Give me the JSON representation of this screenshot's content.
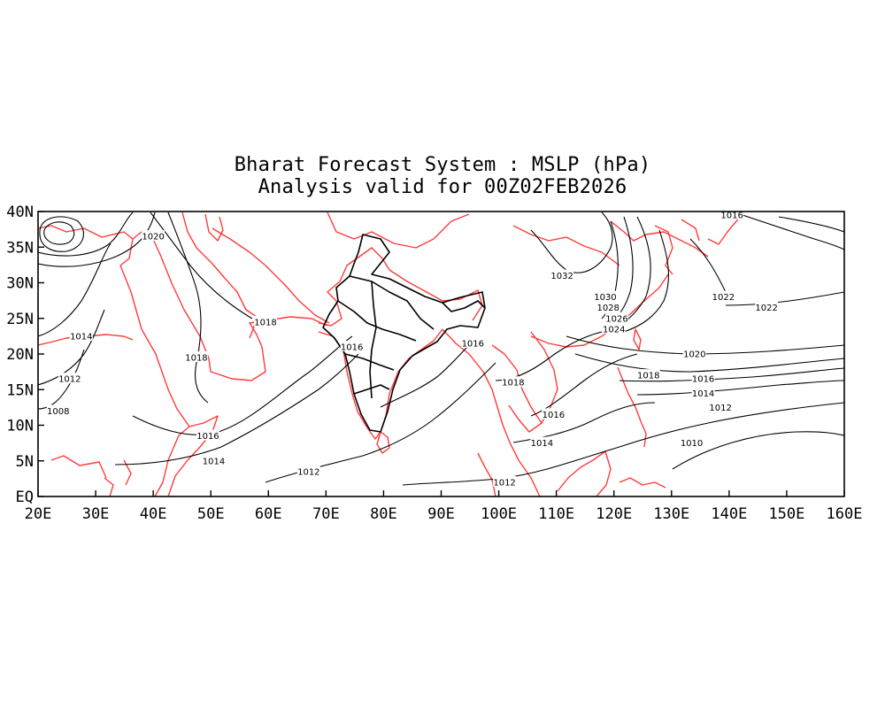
{
  "title": {
    "line1": "Bharat Forecast System : MSLP (hPa)",
    "line2": "Analysis valid for 00Z02FEB2026"
  },
  "axes": {
    "x_labels": [
      "20E",
      "30E",
      "40E",
      "50E",
      "60E",
      "70E",
      "80E",
      "90E",
      "100E",
      "110E",
      "120E",
      "130E",
      "140E",
      "150E",
      "160E"
    ],
    "y_labels": [
      "EQ",
      "5N",
      "10N",
      "15N",
      "20N",
      "25N",
      "30N",
      "35N",
      "40N"
    ],
    "lon_range": [
      20,
      160
    ],
    "lat_range": [
      0,
      40
    ]
  },
  "colors": {
    "coastline": "#ff3b3b",
    "contours": "#000000",
    "india_boundaries": "#000000"
  },
  "isobar_labels": [
    {
      "text": "1020",
      "lon": 40.0,
      "lat": 36.5
    },
    {
      "text": "1014",
      "lon": 27.5,
      "lat": 22.5
    },
    {
      "text": "1012",
      "lon": 25.5,
      "lat": 16.5
    },
    {
      "text": "1008",
      "lon": 23.5,
      "lat": 12.0
    },
    {
      "text": "1018",
      "lon": 47.5,
      "lat": 19.5
    },
    {
      "text": "1018",
      "lon": 59.5,
      "lat": 24.5
    },
    {
      "text": "1016",
      "lon": 49.5,
      "lat": 8.5
    },
    {
      "text": "1014",
      "lon": 50.5,
      "lat": 5.0
    },
    {
      "text": "1012",
      "lon": 67.0,
      "lat": 3.5
    },
    {
      "text": "1016",
      "lon": 74.5,
      "lat": 21.0
    },
    {
      "text": "1016",
      "lon": 95.5,
      "lat": 21.5
    },
    {
      "text": "1018",
      "lon": 102.5,
      "lat": 16.0
    },
    {
      "text": "1016",
      "lon": 109.5,
      "lat": 11.5
    },
    {
      "text": "1014",
      "lon": 107.5,
      "lat": 7.5
    },
    {
      "text": "1012",
      "lon": 101.0,
      "lat": 2.0
    },
    {
      "text": "1032",
      "lon": 111.0,
      "lat": 31.0
    },
    {
      "text": "1030",
      "lon": 118.5,
      "lat": 28.0
    },
    {
      "text": "1028",
      "lon": 119.0,
      "lat": 26.5
    },
    {
      "text": "1026",
      "lon": 120.5,
      "lat": 25.0
    },
    {
      "text": "1024",
      "lon": 120.0,
      "lat": 23.5
    },
    {
      "text": "1022",
      "lon": 139.0,
      "lat": 28.0
    },
    {
      "text": "1022",
      "lon": 146.5,
      "lat": 26.5
    },
    {
      "text": "1020",
      "lon": 134.0,
      "lat": 20.0
    },
    {
      "text": "1018",
      "lon": 126.0,
      "lat": 17.0
    },
    {
      "text": "1016",
      "lon": 135.5,
      "lat": 16.5
    },
    {
      "text": "1014",
      "lon": 135.5,
      "lat": 14.5
    },
    {
      "text": "1012",
      "lon": 138.5,
      "lat": 12.5
    },
    {
      "text": "1010",
      "lon": 133.5,
      "lat": 7.5
    },
    {
      "text": "1016",
      "lon": 140.5,
      "lat": 39.5
    }
  ]
}
